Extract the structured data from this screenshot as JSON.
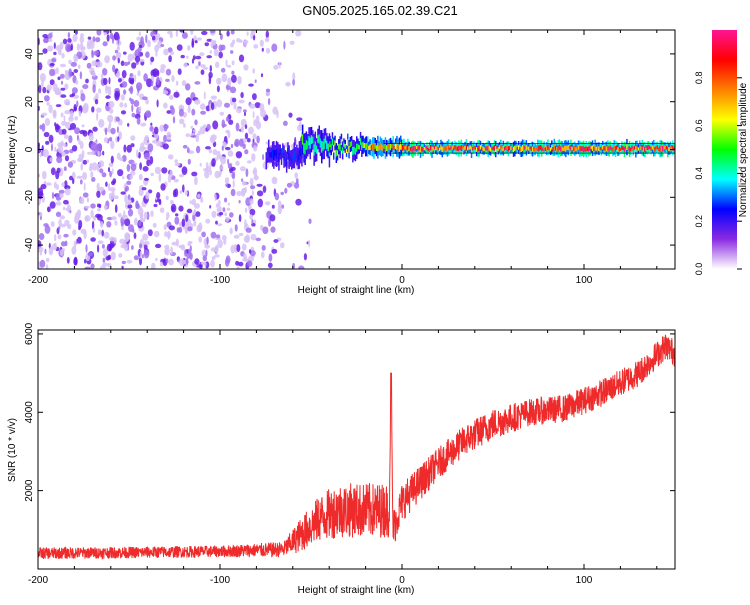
{
  "title": "GN05.2025.165.02.39.C21",
  "colors": {
    "frame": "#000000",
    "snr_line": "#ee2a2a",
    "noise_dot_light": "#d7c2f6",
    "noise_dot_mid": "#a070ee",
    "noise_dot_dark": "#6a1fe6"
  },
  "chart_data": [
    {
      "type": "heatmap",
      "xlabel": "Height of straight line (km)",
      "ylabel": "Frequency (Hz)",
      "xlim": [
        -200,
        150
      ],
      "ylim": [
        -50,
        50
      ],
      "x_ticks": [
        -200,
        -100,
        0,
        100
      ],
      "y_ticks": [
        -40,
        -20,
        0,
        20,
        40
      ],
      "colorbar": {
        "label": "Normalized spectral amplitude",
        "range": [
          0,
          1
        ],
        "ticks": [
          "0.0",
          "0.2",
          "0.4",
          "0.6",
          "0.8"
        ],
        "colormap": [
          "#ffffff",
          "#8a2be2",
          "#0000ff",
          "#00ffff",
          "#00ff00",
          "#ffff00",
          "#ff7f00",
          "#ff0000",
          "#ff1493"
        ]
      },
      "noise_region_x": [
        -200,
        -60
      ],
      "carrier": {
        "x_start": -75,
        "x_end": 150,
        "center_freq": 0.5,
        "segments": [
          {
            "x": [
              -75,
              -55
            ],
            "freq": -3,
            "width": 5,
            "amp": 0.25
          },
          {
            "x": [
              -55,
              -40
            ],
            "freq": 2,
            "width": 6,
            "amp": 0.45
          },
          {
            "x": [
              -40,
              -20
            ],
            "freq": 1,
            "width": 4,
            "amp": 0.55
          },
          {
            "x": [
              -20,
              0
            ],
            "freq": 1,
            "width": 4,
            "amp": 0.7
          },
          {
            "x": [
              0,
              150
            ],
            "freq": 0.5,
            "width": 3,
            "amp": 0.85
          }
        ]
      }
    },
    {
      "type": "line",
      "xlabel": "Height of straight line (km)",
      "ylabel": "SNR (10 * v/v)",
      "xlim": [
        -200,
        150
      ],
      "ylim": [
        0,
        6100
      ],
      "x_ticks": [
        -200,
        -100,
        0,
        100
      ],
      "y_ticks": [
        2000,
        4000,
        6000
      ],
      "series": [
        {
          "x": [
            -200,
            -150,
            -100,
            -65,
            -55,
            -45,
            -35,
            -25,
            -15,
            -7,
            -6,
            -5,
            0,
            20,
            35,
            50,
            70,
            90,
            110,
            130,
            145,
            150
          ],
          "y": [
            400,
            420,
            450,
            500,
            900,
            1300,
            1500,
            1500,
            1500,
            1500,
            5000,
            1000,
            1700,
            2700,
            3300,
            3700,
            4000,
            4100,
            4500,
            5000,
            5700,
            5500
          ],
          "noise": [
            150,
            150,
            150,
            200,
            450,
            600,
            700,
            700,
            700,
            700,
            0,
            500,
            500,
            400,
            400,
            400,
            350,
            350,
            350,
            350,
            350,
            350
          ]
        }
      ]
    }
  ]
}
